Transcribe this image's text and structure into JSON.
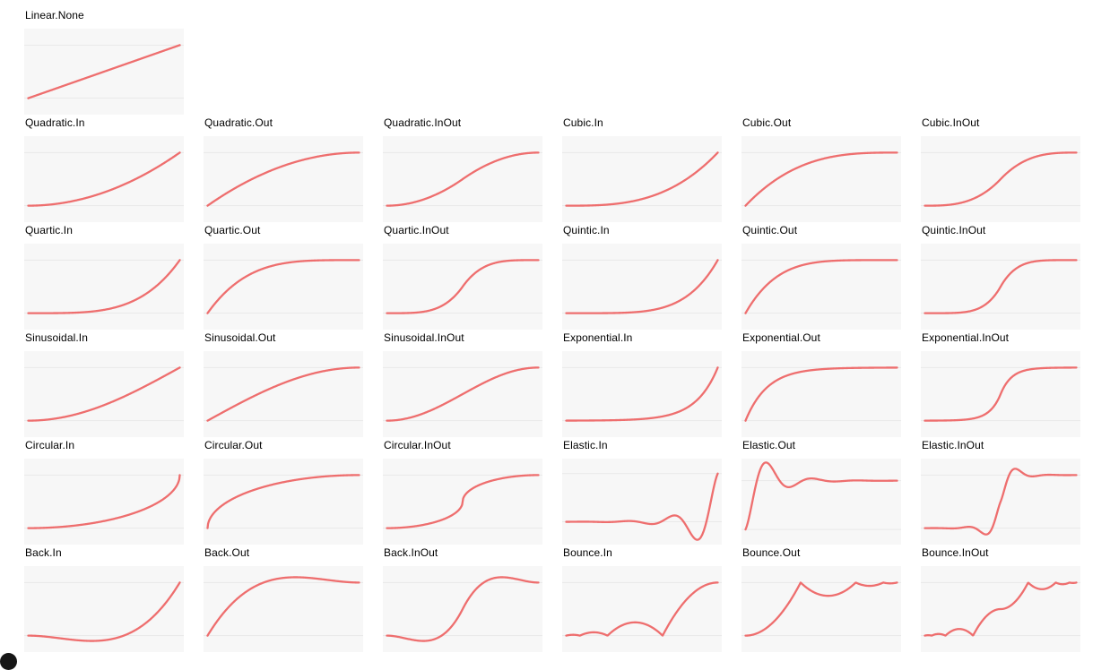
{
  "chart_data": {
    "type": "line",
    "x_range": [
      0,
      1
    ],
    "y_gridlines": [
      0,
      1
    ],
    "grid": true,
    "legend_position": "none",
    "line_color": "#ee6e6e",
    "plot_background": "#f7f7f7",
    "gridline_color": "#e9e9e9",
    "title_color": "#000000",
    "page_background": "#ffffff",
    "easing_params": {
      "back_overshoot": 1.70158,
      "back_inout_overshoot": 2.59491,
      "elastic_period": 0.3,
      "elastic_inout_period": 0.45,
      "bounce_coefficient": 7.5625,
      "bounce_divisor": 2.75
    },
    "rows": [
      {
        "cells": [
          "Linear.None"
        ]
      },
      {
        "cells": [
          "Quadratic.In",
          "Quadratic.Out",
          "Quadratic.InOut",
          "Cubic.In",
          "Cubic.Out",
          "Cubic.InOut"
        ]
      },
      {
        "cells": [
          "Quartic.In",
          "Quartic.Out",
          "Quartic.InOut",
          "Quintic.In",
          "Quintic.Out",
          "Quintic.InOut"
        ]
      },
      {
        "cells": [
          "Sinusoidal.In",
          "Sinusoidal.Out",
          "Sinusoidal.InOut",
          "Exponential.In",
          "Exponential.Out",
          "Exponential.InOut"
        ]
      },
      {
        "cells": [
          "Circular.In",
          "Circular.Out",
          "Circular.InOut",
          "Elastic.In",
          "Elastic.Out",
          "Elastic.InOut"
        ]
      },
      {
        "cells": [
          "Back.In",
          "Back.Out",
          "Back.InOut",
          "Bounce.In",
          "Bounce.Out",
          "Bounce.InOut"
        ]
      }
    ],
    "x_keypoints": [
      0,
      0.125,
      0.25,
      0.375,
      0.5,
      0.625,
      0.75,
      0.875,
      1
    ],
    "series": [
      {
        "name": "Linear.None",
        "y_keypoints": [
          0,
          0.125,
          0.25,
          0.375,
          0.5,
          0.625,
          0.75,
          0.875,
          1
        ]
      },
      {
        "name": "Quadratic.In",
        "y_keypoints": [
          0,
          0.016,
          0.063,
          0.141,
          0.25,
          0.391,
          0.563,
          0.766,
          1
        ]
      },
      {
        "name": "Quadratic.Out",
        "y_keypoints": [
          0,
          0.234,
          0.438,
          0.609,
          0.75,
          0.859,
          0.938,
          0.984,
          1
        ]
      },
      {
        "name": "Quadratic.InOut",
        "y_keypoints": [
          0,
          0.031,
          0.125,
          0.281,
          0.5,
          0.719,
          0.875,
          0.969,
          1
        ]
      },
      {
        "name": "Cubic.In",
        "y_keypoints": [
          0,
          0.002,
          0.016,
          0.053,
          0.125,
          0.244,
          0.422,
          0.67,
          1
        ]
      },
      {
        "name": "Cubic.Out",
        "y_keypoints": [
          0,
          0.33,
          0.578,
          0.756,
          0.875,
          0.947,
          0.984,
          0.998,
          1
        ]
      },
      {
        "name": "Cubic.InOut",
        "y_keypoints": [
          0,
          0.008,
          0.063,
          0.211,
          0.5,
          0.789,
          0.938,
          0.992,
          1
        ]
      },
      {
        "name": "Quartic.In",
        "y_keypoints": [
          0,
          0,
          0.004,
          0.02,
          0.063,
          0.153,
          0.316,
          0.586,
          1
        ]
      },
      {
        "name": "Quartic.Out",
        "y_keypoints": [
          0,
          0.414,
          0.684,
          0.847,
          0.938,
          0.98,
          0.996,
          1,
          1
        ]
      },
      {
        "name": "Quartic.InOut",
        "y_keypoints": [
          0,
          0.002,
          0.031,
          0.158,
          0.5,
          0.842,
          0.969,
          0.998,
          1
        ]
      },
      {
        "name": "Quintic.In",
        "y_keypoints": [
          0,
          0,
          0.001,
          0.007,
          0.031,
          0.095,
          0.237,
          0.513,
          1
        ]
      },
      {
        "name": "Quintic.Out",
        "y_keypoints": [
          0,
          0.487,
          0.763,
          0.905,
          0.969,
          0.993,
          0.999,
          1,
          1
        ]
      },
      {
        "name": "Quintic.InOut",
        "y_keypoints": [
          0,
          0.001,
          0.016,
          0.119,
          0.5,
          0.881,
          0.984,
          0.999,
          1
        ]
      },
      {
        "name": "Sinusoidal.In",
        "y_keypoints": [
          0,
          0.019,
          0.076,
          0.169,
          0.293,
          0.444,
          0.617,
          0.805,
          1
        ]
      },
      {
        "name": "Sinusoidal.Out",
        "y_keypoints": [
          0,
          0.195,
          0.383,
          0.556,
          0.707,
          0.831,
          0.924,
          0.981,
          1
        ]
      },
      {
        "name": "Sinusoidal.InOut",
        "y_keypoints": [
          0,
          0.038,
          0.146,
          0.309,
          0.5,
          0.691,
          0.854,
          0.962,
          1
        ]
      },
      {
        "name": "Exponential.In",
        "y_keypoints": [
          0,
          0.002,
          0.006,
          0.013,
          0.031,
          0.074,
          0.177,
          0.42,
          1
        ]
      },
      {
        "name": "Exponential.Out",
        "y_keypoints": [
          0,
          0.58,
          0.823,
          0.926,
          0.969,
          0.987,
          0.994,
          0.998,
          1
        ]
      },
      {
        "name": "Exponential.InOut",
        "y_keypoints": [
          0,
          0.003,
          0.016,
          0.088,
          0.5,
          0.912,
          0.984,
          0.997,
          1
        ]
      },
      {
        "name": "Circular.In",
        "y_keypoints": [
          0,
          0.008,
          0.032,
          0.073,
          0.134,
          0.219,
          0.339,
          0.516,
          1
        ]
      },
      {
        "name": "Circular.Out",
        "y_keypoints": [
          0,
          0.484,
          0.661,
          0.781,
          0.866,
          0.927,
          0.968,
          0.992,
          1
        ]
      },
      {
        "name": "Circular.InOut",
        "y_keypoints": [
          0,
          0.016,
          0.067,
          0.169,
          0.5,
          0.831,
          0.933,
          0.984,
          1
        ]
      },
      {
        "name": "Elastic.In",
        "y_keypoints": [
          0,
          0.002,
          -0.006,
          0.011,
          -0.016,
          0,
          0.088,
          -0.364,
          1
        ]
      },
      {
        "name": "Elastic.Out",
        "y_keypoints": [
          0,
          1.364,
          0.912,
          1,
          1.016,
          0.989,
          1.006,
          0.998,
          1
        ]
      },
      {
        "name": "Elastic.InOut",
        "y_keypoints": [
          0,
          -0.001,
          0.012,
          -0.083,
          0.5,
          1.083,
          0.988,
          1.001,
          1
        ]
      },
      {
        "name": "Back.In",
        "y_keypoints": [
          0,
          -0.021,
          -0.064,
          -0.097,
          -0.088,
          -0.005,
          0.183,
          0.507,
          1
        ]
      },
      {
        "name": "Back.Out",
        "y_keypoints": [
          0,
          0.493,
          0.817,
          1.005,
          1.088,
          1.097,
          1.064,
          1.021,
          1
        ]
      },
      {
        "name": "Back.InOut",
        "y_keypoints": [
          0,
          -0.053,
          -0.1,
          0.028,
          0.5,
          0.972,
          1.1,
          1.053,
          1
        ]
      },
      {
        "name": "Bounce.In",
        "y_keypoints": [
          0,
          0.038,
          0.027,
          0.202,
          0.234,
          0.03,
          0.527,
          0.882,
          1
        ]
      },
      {
        "name": "Bounce.Out",
        "y_keypoints": [
          0,
          0.118,
          0.473,
          0.97,
          0.766,
          0.798,
          0.973,
          0.962,
          1
        ]
      },
      {
        "name": "Bounce.InOut",
        "y_keypoints": [
          0,
          0.014,
          0.117,
          0.264,
          0.5,
          0.737,
          0.883,
          0.986,
          1
        ]
      }
    ]
  }
}
